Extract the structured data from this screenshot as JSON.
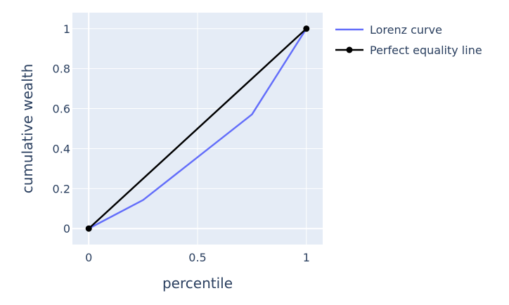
{
  "chart_data": {
    "type": "line",
    "title": "",
    "xlabel": "percentile",
    "ylabel": "cumulative wealth",
    "xlim": [
      -0.075,
      1.075
    ],
    "ylim": [
      -0.08,
      1.08
    ],
    "grid": true,
    "legend_position": "top-right",
    "x_ticks": [
      {
        "value": 0,
        "label": "0"
      },
      {
        "value": 0.5,
        "label": "0.5"
      },
      {
        "value": 1,
        "label": "1"
      }
    ],
    "y_ticks": [
      {
        "value": 0,
        "label": "0"
      },
      {
        "value": 0.2,
        "label": "0.2"
      },
      {
        "value": 0.4,
        "label": "0.4"
      },
      {
        "value": 0.6,
        "label": "0.6"
      },
      {
        "value": 0.8,
        "label": "0.8"
      },
      {
        "value": 1,
        "label": "1"
      }
    ],
    "series": [
      {
        "name": "Lorenz curve",
        "color": "#636efa",
        "markers": false,
        "x": [
          0,
          0.25,
          0.5,
          0.75,
          1
        ],
        "y": [
          0,
          0.143,
          0.357,
          0.571,
          1
        ]
      },
      {
        "name": "Perfect equality line",
        "color": "#000000",
        "markers": true,
        "x": [
          0,
          1
        ],
        "y": [
          0,
          1
        ]
      }
    ]
  },
  "colors": {
    "plot_background": "#e5ecf6",
    "gridline": "#ffffff",
    "axis_text": "#2a3f5f"
  }
}
